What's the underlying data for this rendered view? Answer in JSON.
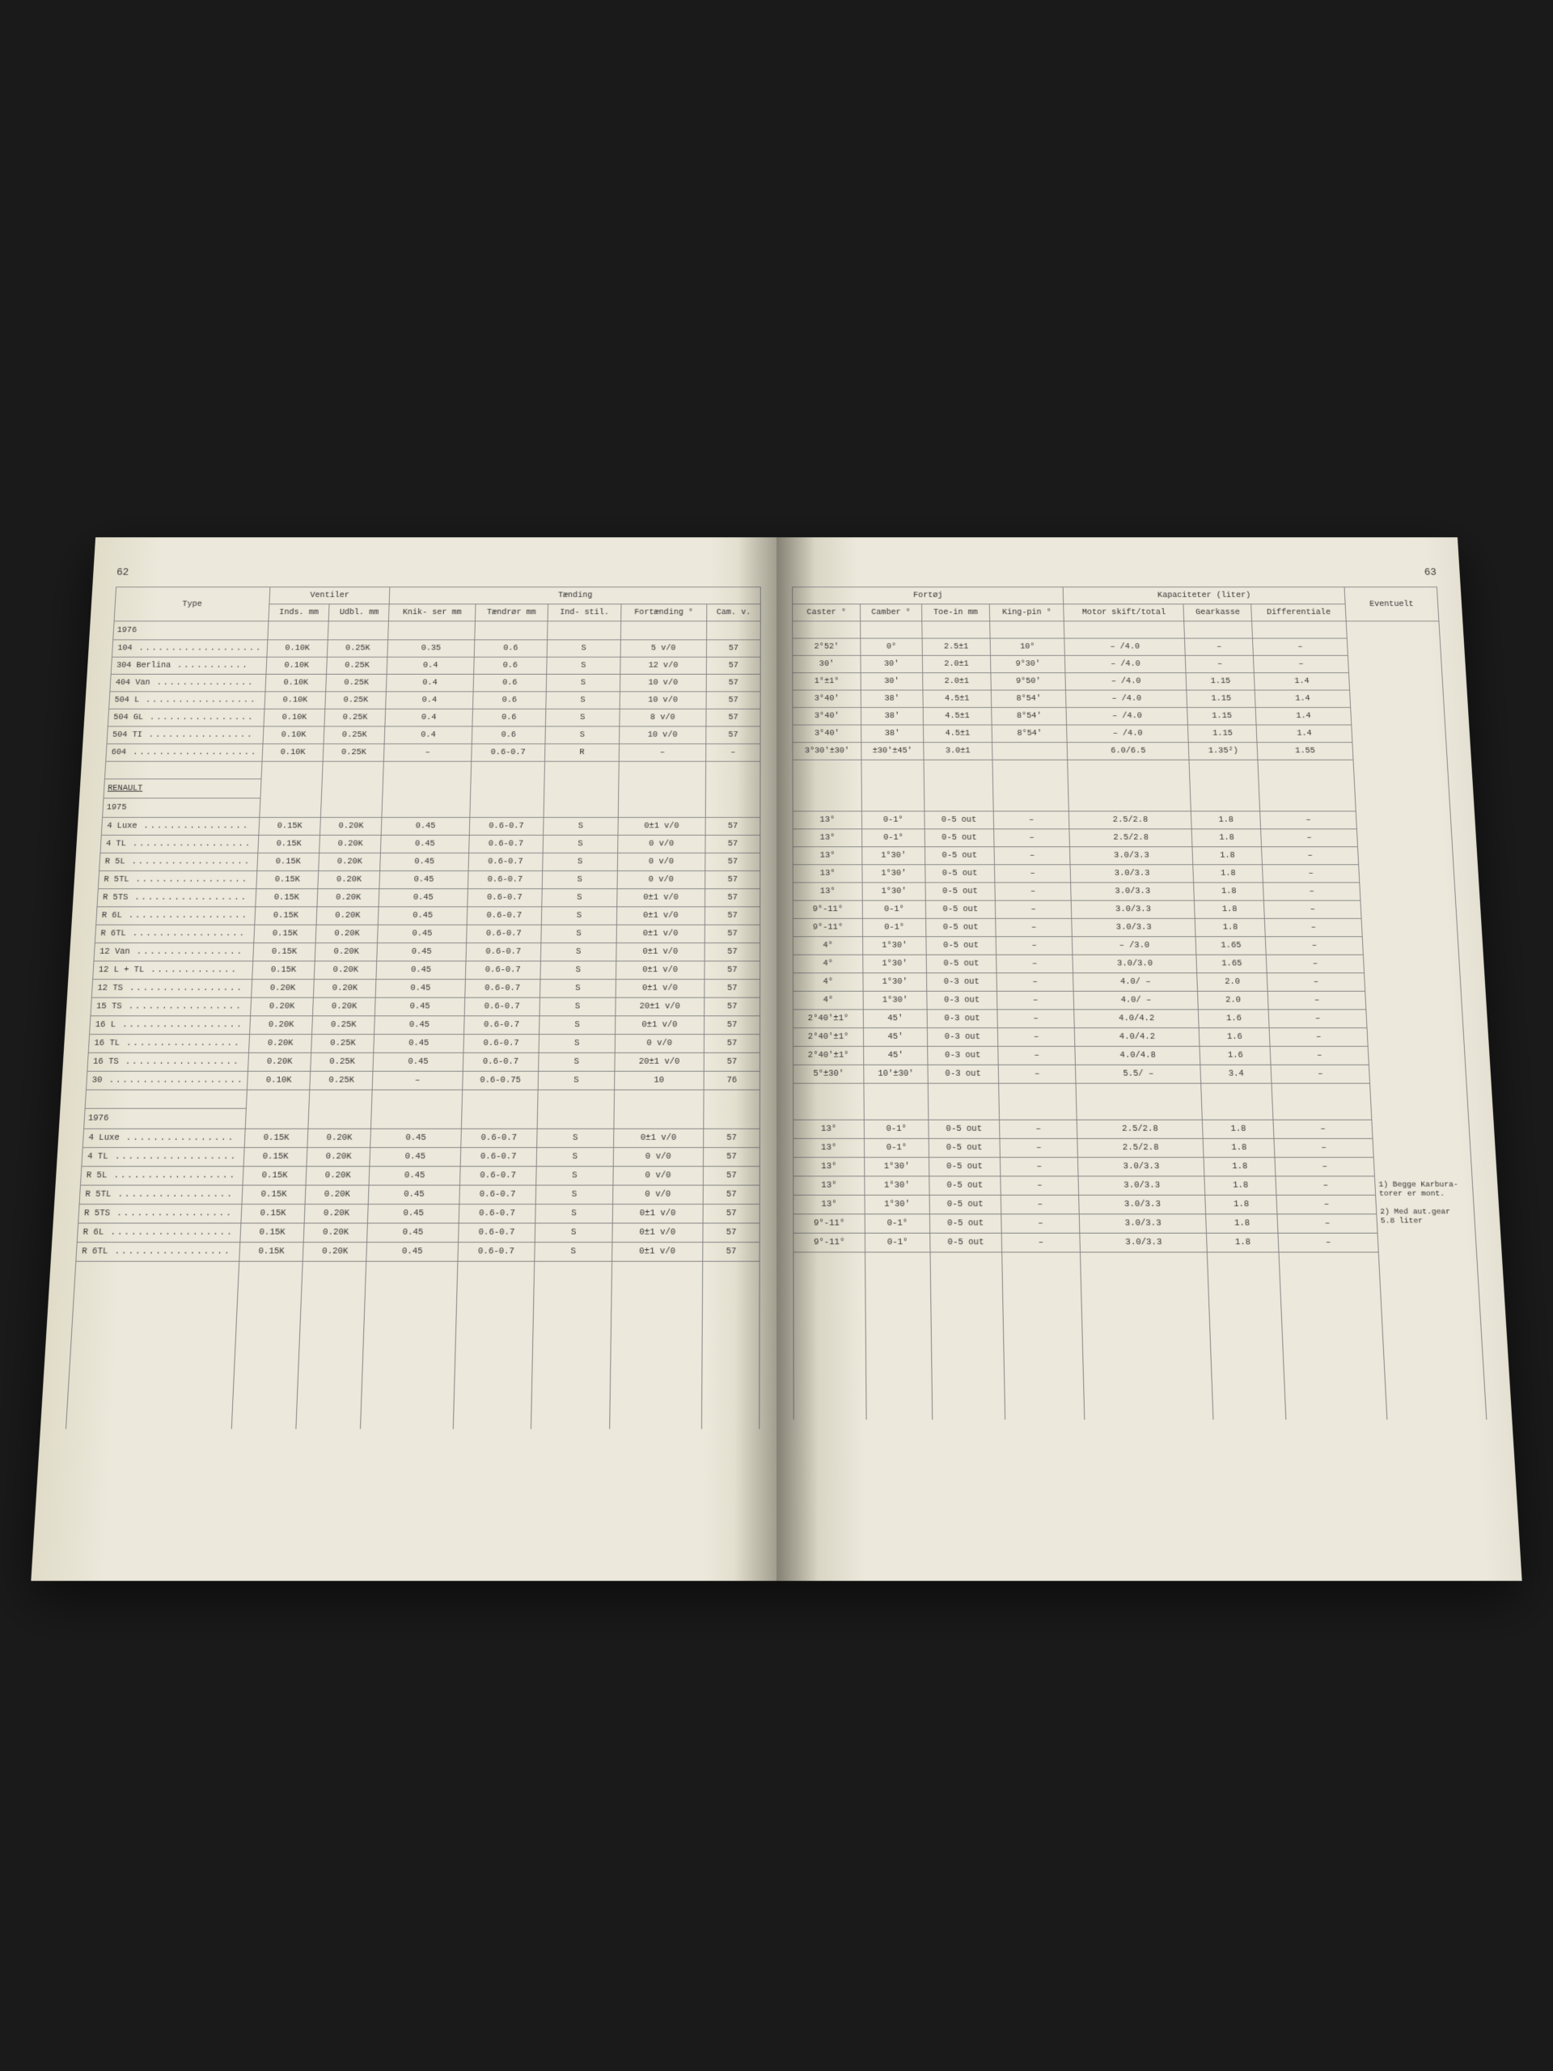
{
  "page_left_num": "62",
  "page_right_num": "63",
  "headers": {
    "type": "Type",
    "ventiler": "Ventiler",
    "inds": "Inds.\nmm",
    "udbl": "Udbl.\nmm",
    "taending": "Tænding",
    "knikser": "Knik-\nser\nmm",
    "taendror": "Tændrør\nmm",
    "indstil": "Ind-\nstil.",
    "fortaending": "Fortænding\n°",
    "cam": "Cam. v.",
    "fortoj": "Fortøj",
    "caster": "Caster\n°",
    "camber": "Camber\n°",
    "toein": "Toe-in\nmm",
    "kingpin": "King-pin\n°",
    "kapaciteter": "Kapaciteter (liter)",
    "motor": "Motor\nskift/total",
    "gearkasse": "Gearkasse",
    "differentiale": "Differentiale",
    "eventuelt": "Eventuelt"
  },
  "sections": [
    {
      "title": "1976",
      "underline": false,
      "rows": [
        {
          "model": "104",
          "inds": "0.10K",
          "udbl": "0.25K",
          "knik": "0.35",
          "taend": "0.6",
          "ind": "S",
          "fort": "5 v/0",
          "cam": "57",
          "caster": "2°52'",
          "camber": "0°",
          "toein": "2.5±1",
          "kingpin": "10°",
          "motor": "– /4.0",
          "gear": "–",
          "diff": "–"
        },
        {
          "model": "304 Berlina",
          "inds": "0.10K",
          "udbl": "0.25K",
          "knik": "0.4",
          "taend": "0.6",
          "ind": "S",
          "fort": "12 v/0",
          "cam": "57",
          "caster": "30'",
          "camber": "30'",
          "toein": "2.0±1",
          "kingpin": "9°30'",
          "motor": "– /4.0",
          "gear": "–",
          "diff": "–"
        },
        {
          "model": "404 Van",
          "inds": "0.10K",
          "udbl": "0.25K",
          "knik": "0.4",
          "taend": "0.6",
          "ind": "S",
          "fort": "10 v/0",
          "cam": "57",
          "caster": "1°±1°",
          "camber": "30'",
          "toein": "2.0±1",
          "kingpin": "9°50'",
          "motor": "– /4.0",
          "gear": "1.15",
          "diff": "1.4"
        },
        {
          "model": "504 L",
          "inds": "0.10K",
          "udbl": "0.25K",
          "knik": "0.4",
          "taend": "0.6",
          "ind": "S",
          "fort": "10 v/0",
          "cam": "57",
          "caster": "3°40'",
          "camber": "38'",
          "toein": "4.5±1",
          "kingpin": "8°54'",
          "motor": "– /4.0",
          "gear": "1.15",
          "diff": "1.4"
        },
        {
          "model": "504 GL",
          "inds": "0.10K",
          "udbl": "0.25K",
          "knik": "0.4",
          "taend": "0.6",
          "ind": "S",
          "fort": "8 v/0",
          "cam": "57",
          "caster": "3°40'",
          "camber": "38'",
          "toein": "4.5±1",
          "kingpin": "8°54'",
          "motor": "– /4.0",
          "gear": "1.15",
          "diff": "1.4"
        },
        {
          "model": "504 TI",
          "inds": "0.10K",
          "udbl": "0.25K",
          "knik": "0.4",
          "taend": "0.6",
          "ind": "S",
          "fort": "10 v/0",
          "cam": "57",
          "caster": "3°40'",
          "camber": "38'",
          "toein": "4.5±1",
          "kingpin": "8°54'",
          "motor": "– /4.0",
          "gear": "1.15",
          "diff": "1.4"
        },
        {
          "model": "604",
          "inds": "0.10K",
          "udbl": "0.25K",
          "knik": "–",
          "taend": "0.6-0.7",
          "ind": "R",
          "fort": "–",
          "cam": "–",
          "caster": "3°30'±30'",
          "camber": "±30'±45'",
          "toein": "3.0±1",
          "kingpin": "",
          "motor": "6.0/6.5",
          "gear": "1.35²)",
          "diff": "1.55"
        }
      ]
    },
    {
      "title": "RENAULT",
      "underline": true,
      "rows": []
    },
    {
      "title": "1975",
      "underline": false,
      "rows": [
        {
          "model": "4 Luxe",
          "inds": "0.15K",
          "udbl": "0.20K",
          "knik": "0.45",
          "taend": "0.6-0.7",
          "ind": "S",
          "fort": "0±1 v/0",
          "cam": "57",
          "caster": "13°",
          "camber": "0-1°",
          "toein": "0-5 out",
          "kingpin": "–",
          "motor": "2.5/2.8",
          "gear": "1.8",
          "diff": "–"
        },
        {
          "model": "4 TL",
          "inds": "0.15K",
          "udbl": "0.20K",
          "knik": "0.45",
          "taend": "0.6-0.7",
          "ind": "S",
          "fort": "0 v/0",
          "cam": "57",
          "caster": "13°",
          "camber": "0-1°",
          "toein": "0-5 out",
          "kingpin": "–",
          "motor": "2.5/2.8",
          "gear": "1.8",
          "diff": "–"
        },
        {
          "model": "R 5L",
          "inds": "0.15K",
          "udbl": "0.20K",
          "knik": "0.45",
          "taend": "0.6-0.7",
          "ind": "S",
          "fort": "0 v/0",
          "cam": "57",
          "caster": "13°",
          "camber": "1°30'",
          "toein": "0-5 out",
          "kingpin": "–",
          "motor": "3.0/3.3",
          "gear": "1.8",
          "diff": "–"
        },
        {
          "model": "R 5TL",
          "inds": "0.15K",
          "udbl": "0.20K",
          "knik": "0.45",
          "taend": "0.6-0.7",
          "ind": "S",
          "fort": "0 v/0",
          "cam": "57",
          "caster": "13°",
          "camber": "1°30'",
          "toein": "0-5 out",
          "kingpin": "–",
          "motor": "3.0/3.3",
          "gear": "1.8",
          "diff": "–"
        },
        {
          "model": "R 5TS",
          "inds": "0.15K",
          "udbl": "0.20K",
          "knik": "0.45",
          "taend": "0.6-0.7",
          "ind": "S",
          "fort": "0±1 v/0",
          "cam": "57",
          "caster": "13°",
          "camber": "1°30'",
          "toein": "0-5 out",
          "kingpin": "–",
          "motor": "3.0/3.3",
          "gear": "1.8",
          "diff": "–"
        },
        {
          "model": "R 6L",
          "inds": "0.15K",
          "udbl": "0.20K",
          "knik": "0.45",
          "taend": "0.6-0.7",
          "ind": "S",
          "fort": "0±1 v/0",
          "cam": "57",
          "caster": "9°-11°",
          "camber": "0-1°",
          "toein": "0-5 out",
          "kingpin": "–",
          "motor": "3.0/3.3",
          "gear": "1.8",
          "diff": "–"
        },
        {
          "model": "R 6TL",
          "inds": "0.15K",
          "udbl": "0.20K",
          "knik": "0.45",
          "taend": "0.6-0.7",
          "ind": "S",
          "fort": "0±1 v/0",
          "cam": "57",
          "caster": "9°-11°",
          "camber": "0-1°",
          "toein": "0-5 out",
          "kingpin": "–",
          "motor": "3.0/3.3",
          "gear": "1.8",
          "diff": "–"
        },
        {
          "model": "12 Van",
          "inds": "0.15K",
          "udbl": "0.20K",
          "knik": "0.45",
          "taend": "0.6-0.7",
          "ind": "S",
          "fort": "0±1 v/0",
          "cam": "57",
          "caster": "4°",
          "camber": "1°30'",
          "toein": "0-5 out",
          "kingpin": "–",
          "motor": "– /3.0",
          "gear": "1.65",
          "diff": "–"
        },
        {
          "model": "12 L + TL",
          "inds": "0.15K",
          "udbl": "0.20K",
          "knik": "0.45",
          "taend": "0.6-0.7",
          "ind": "S",
          "fort": "0±1 v/0",
          "cam": "57",
          "caster": "4°",
          "camber": "1°30'",
          "toein": "0-5 out",
          "kingpin": "–",
          "motor": "3.0/3.0",
          "gear": "1.65",
          "diff": "–"
        },
        {
          "model": "12 TS",
          "inds": "0.20K",
          "udbl": "0.20K",
          "knik": "0.45",
          "taend": "0.6-0.7",
          "ind": "S",
          "fort": "0±1 v/0",
          "cam": "57",
          "caster": "4°",
          "camber": "1°30'",
          "toein": "0-3 out",
          "kingpin": "–",
          "motor": "4.0/ –",
          "gear": "2.0",
          "diff": "–"
        },
        {
          "model": "15 TS",
          "inds": "0.20K",
          "udbl": "0.20K",
          "knik": "0.45",
          "taend": "0.6-0.7",
          "ind": "S",
          "fort": "20±1 v/0",
          "cam": "57",
          "caster": "4°",
          "camber": "1°30'",
          "toein": "0-3 out",
          "kingpin": "–",
          "motor": "4.0/ –",
          "gear": "2.0",
          "diff": "–"
        },
        {
          "model": "16 L",
          "inds": "0.20K",
          "udbl": "0.25K",
          "knik": "0.45",
          "taend": "0.6-0.7",
          "ind": "S",
          "fort": "0±1 v/0",
          "cam": "57",
          "caster": "2°40'±1°",
          "camber": "45'",
          "toein": "0-3 out",
          "kingpin": "–",
          "motor": "4.0/4.2",
          "gear": "1.6",
          "diff": "–"
        },
        {
          "model": "16 TL",
          "inds": "0.20K",
          "udbl": "0.25K",
          "knik": "0.45",
          "taend": "0.6-0.7",
          "ind": "S",
          "fort": "0 v/0",
          "cam": "57",
          "caster": "2°40'±1°",
          "camber": "45'",
          "toein": "0-3 out",
          "kingpin": "–",
          "motor": "4.0/4.2",
          "gear": "1.6",
          "diff": "–"
        },
        {
          "model": "16 TS",
          "inds": "0.20K",
          "udbl": "0.25K",
          "knik": "0.45",
          "taend": "0.6-0.7",
          "ind": "S",
          "fort": "20±1 v/0",
          "cam": "57",
          "caster": "2°40'±1°",
          "camber": "45'",
          "toein": "0-3 out",
          "kingpin": "–",
          "motor": "4.0/4.8",
          "gear": "1.6",
          "diff": "–"
        },
        {
          "model": "30",
          "inds": "0.10K",
          "udbl": "0.25K",
          "knik": "–",
          "taend": "0.6-0.75",
          "ind": "S",
          "fort": "10",
          "cam": "76",
          "caster": "5°±30'",
          "camber": "10'±30'",
          "toein": "0-3 out",
          "kingpin": "–",
          "motor": "5.5/ –",
          "gear": "3.4",
          "diff": "–"
        }
      ]
    },
    {
      "title": "1976",
      "underline": false,
      "rows": [
        {
          "model": "4 Luxe",
          "inds": "0.15K",
          "udbl": "0.20K",
          "knik": "0.45",
          "taend": "0.6-0.7",
          "ind": "S",
          "fort": "0±1 v/0",
          "cam": "57",
          "caster": "13°",
          "camber": "0-1°",
          "toein": "0-5 out",
          "kingpin": "–",
          "motor": "2.5/2.8",
          "gear": "1.8",
          "diff": "–"
        },
        {
          "model": "4 TL",
          "inds": "0.15K",
          "udbl": "0.20K",
          "knik": "0.45",
          "taend": "0.6-0.7",
          "ind": "S",
          "fort": "0 v/0",
          "cam": "57",
          "caster": "13°",
          "camber": "0-1°",
          "toein": "0-5 out",
          "kingpin": "–",
          "motor": "2.5/2.8",
          "gear": "1.8",
          "diff": "–"
        },
        {
          "model": "R 5L",
          "inds": "0.15K",
          "udbl": "0.20K",
          "knik": "0.45",
          "taend": "0.6-0.7",
          "ind": "S",
          "fort": "0 v/0",
          "cam": "57",
          "caster": "13°",
          "camber": "1°30'",
          "toein": "0-5 out",
          "kingpin": "–",
          "motor": "3.0/3.3",
          "gear": "1.8",
          "diff": "–"
        },
        {
          "model": "R 5TL",
          "inds": "0.15K",
          "udbl": "0.20K",
          "knik": "0.45",
          "taend": "0.6-0.7",
          "ind": "S",
          "fort": "0 v/0",
          "cam": "57",
          "caster": "13°",
          "camber": "1°30'",
          "toein": "0-5 out",
          "kingpin": "–",
          "motor": "3.0/3.3",
          "gear": "1.8",
          "diff": "–"
        },
        {
          "model": "R 5TS",
          "inds": "0.15K",
          "udbl": "0.20K",
          "knik": "0.45",
          "taend": "0.6-0.7",
          "ind": "S",
          "fort": "0±1 v/0",
          "cam": "57",
          "caster": "13°",
          "camber": "1°30'",
          "toein": "0-5 out",
          "kingpin": "–",
          "motor": "3.0/3.3",
          "gear": "1.8",
          "diff": "–",
          "note": "1) Begge Karburatorer er mont."
        },
        {
          "model": "R 6L",
          "inds": "0.15K",
          "udbl": "0.20K",
          "knik": "0.45",
          "taend": "0.6-0.7",
          "ind": "S",
          "fort": "0±1 v/0",
          "cam": "57",
          "caster": "9°-11°",
          "camber": "0-1°",
          "toein": "0-5 out",
          "kingpin": "–",
          "motor": "3.0/3.3",
          "gear": "1.8",
          "diff": "–"
        },
        {
          "model": "R 6TL",
          "inds": "0.15K",
          "udbl": "0.20K",
          "knik": "0.45",
          "taend": "0.6-0.7",
          "ind": "S",
          "fort": "0±1 v/0",
          "cam": "57",
          "caster": "9°-11°",
          "camber": "0-1°",
          "toein": "0-5 out",
          "kingpin": "–",
          "motor": "3.0/3.3",
          "gear": "1.8",
          "diff": "–",
          "note": "2) Med aut.gear 5.8 liter"
        }
      ]
    }
  ],
  "left_cols": [
    "model",
    "inds",
    "udbl",
    "knik",
    "taend",
    "ind",
    "fort",
    "cam"
  ],
  "right_cols": [
    "caster",
    "camber",
    "toein",
    "kingpin",
    "motor",
    "gear",
    "diff"
  ],
  "notes_text": "1) Begge Karbura-\n   torer er mont.\n\n2) Med aut.gear\n   5.8 liter"
}
